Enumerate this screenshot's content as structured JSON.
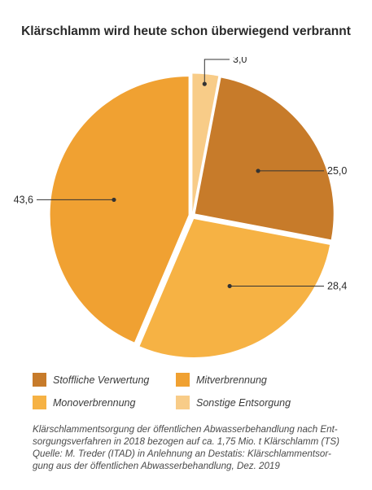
{
  "chart_data": {
    "type": "pie",
    "title": "Klärschlamm wird heute schon überwiegend verbrannt",
    "slices": [
      {
        "label": "Sonstige Entsorgung",
        "value": 3.0,
        "display": "3,0",
        "color": "#f8cc88"
      },
      {
        "label": "Stoffliche Verwertung",
        "value": 25.0,
        "display": "25,0",
        "color": "#c77b2a"
      },
      {
        "label": "Monoverbrennung",
        "value": 28.4,
        "display": "28,4",
        "color": "#f6b244"
      },
      {
        "label": "Mitverbrennung",
        "value": 43.6,
        "display": "43,6",
        "color": "#f0a132"
      }
    ],
    "legend": [
      {
        "label": "Stoffliche Verwertung",
        "color": "#c77b2a"
      },
      {
        "label": "Mitverbrennung",
        "color": "#f0a132"
      },
      {
        "label": "Monoverbrennung",
        "color": "#f6b244"
      },
      {
        "label": "Sonstige Entsorgung",
        "color": "#f8cc88"
      }
    ],
    "legend_placement": "bottom"
  },
  "caption": {
    "lines": [
      "Klärschlammentsorgung der öffentlichen Abwasserbehandlung nach Ent-",
      "sorgungsverfahren in 2018 bezogen auf ca. 1,75 Mio. t Klärschlamm (TS)",
      "Quelle: M. Treder (ITAD) in Anlehnung an Destatis: Klärschlammentsor-",
      "gung aus der öffentlichen Abwasserbehandlung, Dez. 2019"
    ]
  }
}
